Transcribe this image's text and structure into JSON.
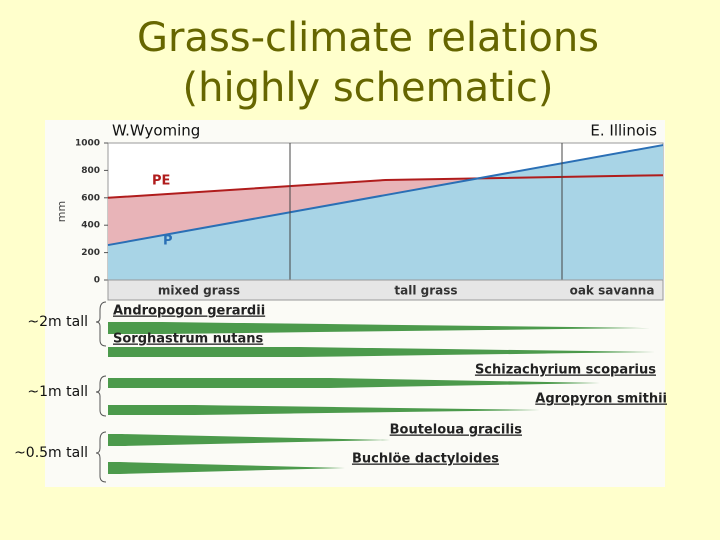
{
  "title": [
    "Grass-climate relations",
    "(highly schematic)"
  ],
  "chart_data": {
    "type": "line",
    "categories": [
      "W.Wyoming",
      null,
      "E. Illinois"
    ],
    "series": [
      {
        "name": "PE",
        "color": "#b01c1c",
        "values": [
          600,
          730,
          765
        ]
      },
      {
        "name": "P",
        "color": "#2a6fb5",
        "values": [
          255,
          620,
          985
        ]
      }
    ],
    "ylabel": "mm",
    "ylim": [
      0,
      1000
    ],
    "yticks": [
      0,
      200,
      400,
      600,
      800,
      1000
    ],
    "zones": [
      "mixed grass",
      "tall grass",
      "oak savanna"
    ]
  },
  "species": {
    "heights": [
      "~2m tall",
      "~1m tall",
      "~0.5m tall"
    ],
    "names": [
      "Andropogon gerardii",
      "Sorghastrum nutans",
      "Schizachyrium scoparius",
      "Agropyron smithii",
      "Bouteloua gracilis",
      "Buchlöe dactyloides"
    ]
  }
}
